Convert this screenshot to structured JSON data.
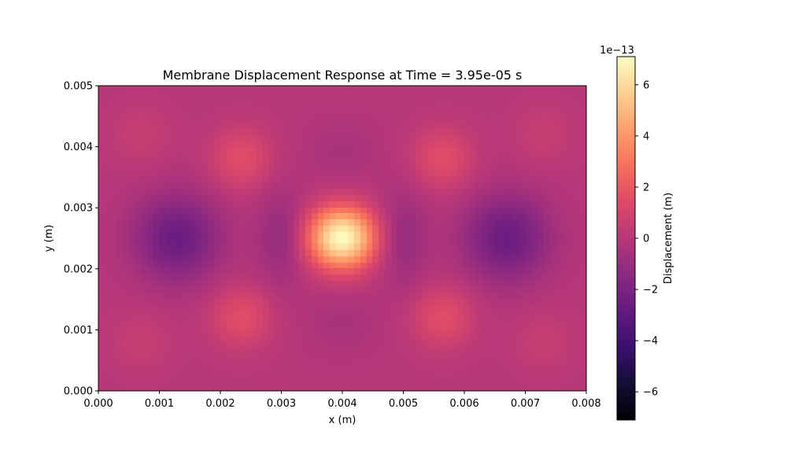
{
  "chart_data": {
    "type": "heatmap",
    "title": "Membrane Displacement Response at Time = 3.95e-05 s",
    "xlabel": "x (m)",
    "ylabel": "y (m)",
    "xlim": [
      0.0,
      0.008
    ],
    "ylim": [
      0.0,
      0.005
    ],
    "x_ticks": [
      0.0,
      0.001,
      0.002,
      0.003,
      0.004,
      0.005,
      0.006,
      0.007,
      0.008
    ],
    "x_tick_labels": [
      "0.000",
      "0.001",
      "0.002",
      "0.003",
      "0.004",
      "0.005",
      "0.006",
      "0.007",
      "0.008"
    ],
    "y_ticks": [
      0.0,
      0.001,
      0.002,
      0.003,
      0.004,
      0.005
    ],
    "y_tick_labels": [
      "0.000",
      "0.001",
      "0.002",
      "0.003",
      "0.004",
      "0.005"
    ],
    "colormap": "magma",
    "grid": false,
    "colorbar": {
      "label": "Displacement (m)",
      "scale_label": "1e−13",
      "scale": 1e-13,
      "vmin": -7.1,
      "vmax": 7.1,
      "ticks": [
        -6,
        -4,
        -2,
        0,
        2,
        4,
        6
      ],
      "tick_labels": [
        "−6",
        "−4",
        "−2",
        "0",
        "2",
        "4",
        "6"
      ]
    },
    "field_features": [
      {
        "kind": "peak",
        "x": 0.004,
        "y": 0.0025,
        "value": 7.1,
        "spread_x": 0.00055,
        "spread_y": 0.0005
      },
      {
        "kind": "trough",
        "x": 0.0013,
        "y": 0.0025,
        "value": -2.6,
        "spread_x": 0.0007,
        "spread_y": 0.0007
      },
      {
        "kind": "trough",
        "x": 0.0067,
        "y": 0.0025,
        "value": -2.6,
        "spread_x": 0.0007,
        "spread_y": 0.0007
      },
      {
        "kind": "peak",
        "x": 0.00235,
        "y": 0.0038,
        "value": 1.6,
        "spread_x": 0.0005,
        "spread_y": 0.0005
      },
      {
        "kind": "peak",
        "x": 0.00565,
        "y": 0.0038,
        "value": 1.6,
        "spread_x": 0.0005,
        "spread_y": 0.0005
      },
      {
        "kind": "peak",
        "x": 0.00235,
        "y": 0.0012,
        "value": 1.6,
        "spread_x": 0.0005,
        "spread_y": 0.0005
      },
      {
        "kind": "peak",
        "x": 0.00565,
        "y": 0.0012,
        "value": 1.6,
        "spread_x": 0.0005,
        "spread_y": 0.0005
      },
      {
        "kind": "trough",
        "x": 0.004,
        "y": 0.0039,
        "value": -0.5,
        "spread_x": 0.0006,
        "spread_y": 0.0005
      },
      {
        "kind": "trough",
        "x": 0.004,
        "y": 0.0011,
        "value": -0.5,
        "spread_x": 0.0006,
        "spread_y": 0.0005
      },
      {
        "kind": "trough",
        "x": 0.003,
        "y": 0.0025,
        "value": -1.2,
        "spread_x": 0.0004,
        "spread_y": 0.0008
      },
      {
        "kind": "trough",
        "x": 0.005,
        "y": 0.0025,
        "value": -1.2,
        "spread_x": 0.0004,
        "spread_y": 0.0008
      },
      {
        "kind": "peak",
        "x": 0.0007,
        "y": 0.0042,
        "value": 0.6,
        "spread_x": 0.0005,
        "spread_y": 0.0005
      },
      {
        "kind": "peak",
        "x": 0.0073,
        "y": 0.0042,
        "value": 0.6,
        "spread_x": 0.0005,
        "spread_y": 0.0005
      },
      {
        "kind": "peak",
        "x": 0.0007,
        "y": 0.0008,
        "value": 0.6,
        "spread_x": 0.0005,
        "spread_y": 0.0005
      },
      {
        "kind": "peak",
        "x": 0.0073,
        "y": 0.0008,
        "value": 0.6,
        "spread_x": 0.0005,
        "spread_y": 0.0005
      }
    ]
  }
}
